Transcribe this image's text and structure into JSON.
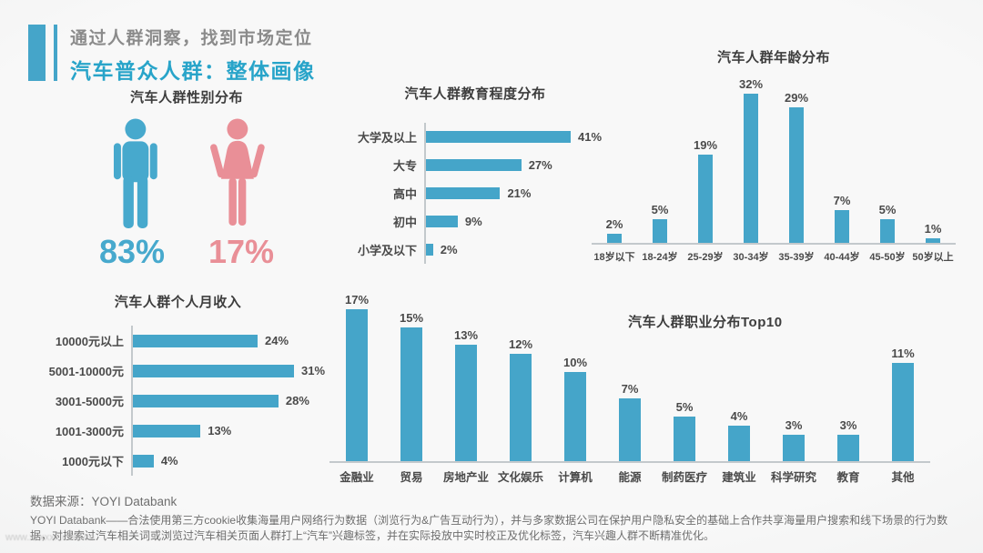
{
  "colors": {
    "accent": "#45a5c9",
    "male_blue": "#47a9cd",
    "pink": "#e98f97",
    "title_blue": "#28a4c9",
    "subtitle_gray": "#8b8b8b",
    "heading": "#3d3d3d",
    "label_dark": "#4a4a4a",
    "axis_gray": "#c3c9cc",
    "footer_gray": "#6e6e6e"
  },
  "header": {
    "subtitle": "通过人群洞察，找到市场定位",
    "title": "汽车普众人群：整体画像"
  },
  "gender": {
    "title": "汽车人群性别分布",
    "male_value": "83%",
    "female_value": "17%"
  },
  "chart_data": [
    {
      "id": "gender",
      "type": "pictogram",
      "title": "汽车人群性别分布",
      "categories": [
        "男",
        "女"
      ],
      "values": [
        83,
        17
      ],
      "unit": "%",
      "colors": [
        "#47a9cd",
        "#e98f97"
      ]
    },
    {
      "id": "education",
      "type": "bar",
      "orientation": "horizontal",
      "title": "汽车人群教育程度分布",
      "categories": [
        "大学及以上",
        "大专",
        "高中",
        "初中",
        "小学及以下"
      ],
      "values": [
        41,
        27,
        21,
        9,
        2
      ],
      "unit": "%",
      "xlim": [
        0,
        45
      ],
      "value_labels": true,
      "grid": false,
      "legend": "none"
    },
    {
      "id": "age",
      "type": "bar",
      "orientation": "vertical",
      "title": "汽车人群年龄分布",
      "categories": [
        "18岁以下",
        "18-24岁",
        "25-29岁",
        "30-34岁",
        "35-39岁",
        "40-44岁",
        "45-50岁",
        "50岁以上"
      ],
      "values": [
        2,
        5,
        19,
        32,
        29,
        7,
        5,
        1
      ],
      "unit": "%",
      "ylim": [
        0,
        35
      ],
      "value_labels": true,
      "grid": false,
      "legend": "none"
    },
    {
      "id": "income",
      "type": "bar",
      "orientation": "horizontal",
      "title": "汽车人群个人月收入",
      "categories": [
        "10000元以上",
        "5001-10000元",
        "3001-5000元",
        "1001-3000元",
        "1000元以下"
      ],
      "values": [
        24,
        31,
        28,
        13,
        4
      ],
      "unit": "%",
      "xlim": [
        0,
        35
      ],
      "value_labels": true,
      "grid": false,
      "legend": "none"
    },
    {
      "id": "occupation",
      "type": "bar",
      "orientation": "vertical",
      "title": "汽车人群职业分布Top10",
      "categories": [
        "金融业",
        "贸易",
        "房地产业",
        "文化娱乐",
        "计算机",
        "能源",
        "制药医疗",
        "建筑业",
        "科学研究",
        "教育",
        "其他"
      ],
      "values": [
        17,
        15,
        13,
        12,
        10,
        7,
        5,
        4,
        3,
        3,
        11
      ],
      "unit": "%",
      "ylim": [
        0,
        18
      ],
      "value_labels": true,
      "grid": false,
      "legend": "none"
    }
  ],
  "footer": {
    "source": "数据来源：YOYI Databank",
    "description": "YOYI Databank——合法使用第三方cookie收集海量用户网络行为数据（浏览行为&广告互动行为），并与多家数据公司在保护用户隐私安全的基础上合作共享海量用户搜索和线下场景的行为数据，对搜索过汽车相关词或浏览过汽车相关页面人群打上“汽车”兴趣标签，并在实际投放中实时校正及优化标签，汽车兴趣人群不断精准优化。"
  },
  "watermark": "www.xxxxxx.com.cn"
}
